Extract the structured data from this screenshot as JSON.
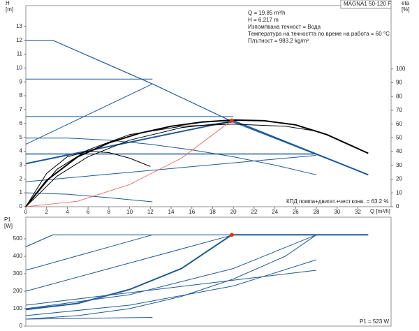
{
  "chart_data": [
    {
      "type": "line",
      "y_label": "H",
      "y_unit": "[m]",
      "y2_label": "eta",
      "y2_unit": "[%]",
      "x_label": "Q [m³/h]",
      "model": "MAGNA1 50-120 F",
      "info": [
        "Q = 19.85 m³/h",
        "H = 6.217 m",
        "Изпомпвана течност = Вода",
        "Температура на течността по време на работа = 60 °C",
        "Плътност = 983.2 kg/m³"
      ],
      "efficiency_label": "КПД помпа+двигат.+чест.конв. = 63.2 %",
      "xlim": [
        0,
        35.2
      ],
      "xticks": [
        0,
        2,
        4,
        6,
        8,
        10,
        12,
        14,
        16,
        18,
        20,
        22,
        24,
        26,
        28,
        30,
        32
      ],
      "ylim": [
        0,
        14.5
      ],
      "yticks": [
        0,
        1,
        2,
        3,
        4,
        5,
        6,
        7,
        8,
        9,
        10,
        11,
        12,
        13
      ],
      "y2lim": [
        0,
        146
      ],
      "y2ticks": [
        0,
        10,
        20,
        30,
        40,
        50,
        60,
        70,
        80,
        90,
        100
      ],
      "point": {
        "x": 19.85,
        "y": 6.217,
        "color": "#ff2a00"
      },
      "series": [
        {
          "color": "#1f5a96",
          "width": 1.2,
          "x": [
            0,
            2.6,
            12.2,
            20,
            33
          ],
          "values": [
            12,
            12,
            8.85,
            6.1,
            2.3
          ]
        },
        {
          "color": "#1f5a96",
          "width": 1,
          "x": [
            0,
            12.2
          ],
          "values": [
            4.5,
            8.85
          ]
        },
        {
          "color": "#1f5a96",
          "width": 2,
          "x": [
            0,
            20,
            28,
            33
          ],
          "values": [
            3.1,
            6.2,
            3.8,
            2.3
          ]
        },
        {
          "color": "#1f5a96",
          "width": 1,
          "x": [
            0,
            28
          ],
          "values": [
            1.8,
            3.7
          ]
        },
        {
          "color": "#1f5a96",
          "width": 1,
          "x": [
            0,
            12.2
          ],
          "values": [
            9.2,
            9.2
          ]
        },
        {
          "color": "#1f5a96",
          "width": 1,
          "x": [
            0,
            20
          ],
          "values": [
            6.5,
            6.5
          ]
        },
        {
          "color": "#1f5a96",
          "width": 1.4,
          "x": [
            0,
            28
          ],
          "values": [
            3.8,
            3.8
          ]
        },
        {
          "color": "#1f5a96",
          "width": 1,
          "x": [
            0,
            4,
            8,
            12,
            16,
            20,
            24,
            28
          ],
          "values": [
            4.95,
            4.95,
            4.8,
            4.5,
            4.1,
            3.6,
            3.0,
            2.3
          ]
        },
        {
          "color": "#1f5a96",
          "width": 1,
          "x": [
            0,
            4,
            8,
            12.2
          ],
          "values": [
            1.0,
            0.9,
            0.65,
            0.35
          ]
        },
        {
          "color": "#000000",
          "width": 2,
          "x": [
            0,
            2,
            5,
            8,
            11,
            14,
            17,
            20,
            23,
            26,
            29,
            33
          ],
          "values": [
            0,
            1.9,
            3.6,
            4.6,
            5.3,
            5.8,
            6.1,
            6.25,
            6.2,
            5.9,
            5.2,
            3.85
          ]
        },
        {
          "color": "#000000",
          "width": 1,
          "x": [
            0,
            2,
            4,
            6,
            8,
            10,
            12
          ],
          "values": [
            0,
            2.4,
            3.6,
            4.0,
            3.9,
            3.5,
            2.9
          ]
        },
        {
          "color": "#000000",
          "width": 1,
          "x": [
            0,
            3,
            6,
            10,
            15,
            20,
            25,
            28
          ],
          "values": [
            0,
            2.7,
            4.1,
            5.2,
            5.8,
            5.95,
            5.8,
            5.45
          ]
        },
        {
          "color": "#000000",
          "width": 1,
          "x": [
            0,
            3,
            6,
            10,
            15,
            20
          ],
          "values": [
            0,
            2.2,
            3.6,
            4.8,
            5.7,
            6.1
          ]
        },
        {
          "color": "#e85a4f",
          "width": 0.8,
          "x": [
            0,
            5,
            10,
            15,
            19.85
          ],
          "values": [
            0,
            0.4,
            1.6,
            3.5,
            6.217
          ]
        }
      ]
    },
    {
      "type": "line",
      "y_label": "P1",
      "y_unit": "[W]",
      "p1_label": "P1 = 523 W",
      "xlim": [
        0,
        35.2
      ],
      "ylim": [
        0,
        624
      ],
      "yticks": [
        0,
        100,
        200,
        300,
        400,
        500
      ],
      "point": {
        "x": 19.85,
        "y": 523,
        "color": "#ff2a00"
      },
      "series": [
        {
          "color": "#1f5a96",
          "width": 1.2,
          "x": [
            0,
            2.6,
            33
          ],
          "values": [
            455,
            523,
            523
          ]
        },
        {
          "color": "#1f5a96",
          "width": 2,
          "x": [
            0,
            5,
            10,
            15,
            19.85,
            33
          ],
          "values": [
            95,
            130,
            210,
            330,
            523,
            523
          ]
        },
        {
          "color": "#1f5a96",
          "width": 1,
          "x": [
            0,
            12.2
          ],
          "values": [
            320,
            523
          ]
        },
        {
          "color": "#1f5a96",
          "width": 1,
          "x": [
            0,
            20
          ],
          "values": [
            200,
            523
          ]
        },
        {
          "color": "#1f5a96",
          "width": 1,
          "x": [
            0,
            5,
            10,
            15,
            20,
            25,
            28
          ],
          "values": [
            40,
            60,
            100,
            170,
            270,
            400,
            523
          ]
        },
        {
          "color": "#1f5a96",
          "width": 1,
          "x": [
            0,
            28
          ],
          "values": [
            120,
            320
          ]
        },
        {
          "color": "#1f5a96",
          "width": 1,
          "x": [
            0,
            12.2
          ],
          "values": [
            40,
            50
          ]
        },
        {
          "color": "#1f5a96",
          "width": 1,
          "x": [
            0,
            10,
            20,
            28
          ],
          "values": [
            100,
            180,
            330,
            523
          ]
        },
        {
          "color": "#1f5a96",
          "width": 1,
          "x": [
            0,
            10,
            20,
            28
          ],
          "values": [
            60,
            120,
            230,
            380
          ]
        }
      ]
    }
  ]
}
